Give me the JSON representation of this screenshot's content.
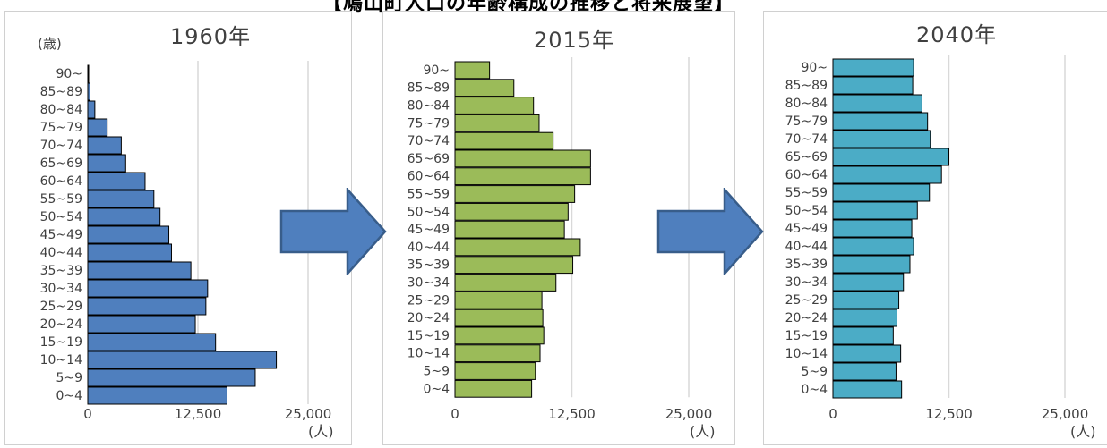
{
  "title": "【鳩山町人口の年齢構成の推移と将来展望】",
  "colors": {
    "series_1960": "#4f7fbe",
    "series_2015": "#9bbb59",
    "series_2040": "#4bacc6",
    "arrow": "#4f7fbe",
    "arrow_border": "#385d8a",
    "bar_border": "#000000",
    "gridline": "#d9d9d9"
  },
  "icons": [
    "right-arrow-icon",
    "right-arrow-icon"
  ],
  "chart_data": [
    {
      "type": "bar",
      "orientation": "horizontal",
      "title": "1960年",
      "y_unit_label": "(歳)",
      "x_unit_label": "(人)",
      "xlim": [
        0,
        25000
      ],
      "x_ticks": [
        "0",
        "12,500",
        "25,000"
      ],
      "grid": true,
      "categories": [
        "90~",
        "85~89",
        "80~84",
        "75~79",
        "70~74",
        "65~69",
        "60~64",
        "55~59",
        "50~54",
        "45~49",
        "40~44",
        "35~39",
        "30~34",
        "25~29",
        "20~24",
        "15~19",
        "10~14",
        "5~9",
        "0~4"
      ],
      "values": [
        50,
        250,
        800,
        2200,
        3800,
        4300,
        6500,
        7500,
        8200,
        9200,
        9500,
        11700,
        13600,
        13400,
        12200,
        14500,
        21400,
        19000,
        15800
      ]
    },
    {
      "type": "bar",
      "orientation": "horizontal",
      "title": "2015年",
      "xlim": [
        0,
        25000
      ],
      "x_ticks": [
        "0",
        "12,500",
        "25,000"
      ],
      "x_unit_label": "(人)",
      "grid": true,
      "categories": [
        "90~",
        "85~89",
        "80~84",
        "75~79",
        "70~74",
        "65~69",
        "60~64",
        "55~59",
        "50~54",
        "45~49",
        "40~44",
        "35~39",
        "30~34",
        "25~29",
        "20~24",
        "15~19",
        "10~14",
        "5~9",
        "0~4"
      ],
      "values": [
        3700,
        6300,
        8400,
        9000,
        10500,
        14500,
        14500,
        12800,
        12100,
        11700,
        13400,
        12600,
        10800,
        9300,
        9400,
        9500,
        9100,
        8600,
        8200
      ]
    },
    {
      "type": "bar",
      "orientation": "horizontal",
      "title": "2040年",
      "xlim": [
        0,
        25000
      ],
      "x_ticks": [
        "0",
        "12,500",
        "25,000"
      ],
      "x_unit_label": "(人)",
      "grid": true,
      "categories": [
        "90~",
        "85~89",
        "80~84",
        "75~79",
        "70~74",
        "65~69",
        "60~64",
        "55~59",
        "50~54",
        "45~49",
        "40~44",
        "35~39",
        "30~34",
        "25~29",
        "20~24",
        "15~19",
        "10~14",
        "5~9",
        "0~4"
      ],
      "values": [
        8700,
        8600,
        9600,
        10200,
        10500,
        12500,
        11700,
        10400,
        9100,
        8500,
        8700,
        8300,
        7600,
        7100,
        6900,
        6500,
        7300,
        6800,
        7400
      ]
    }
  ]
}
